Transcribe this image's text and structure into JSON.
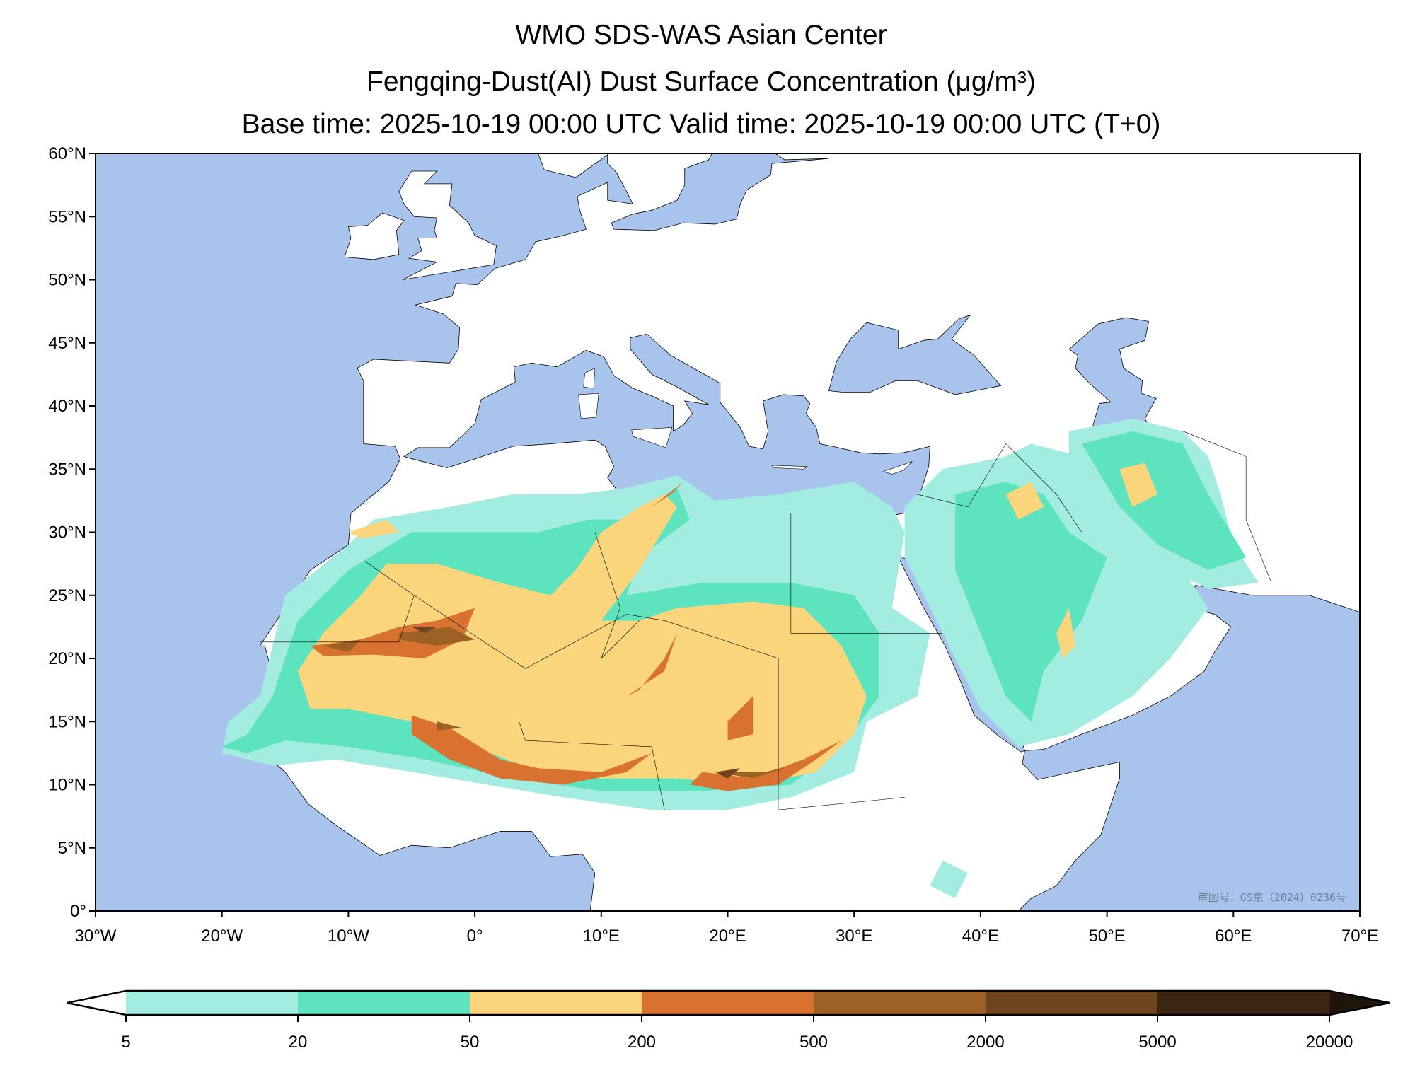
{
  "title": {
    "line1": "WMO SDS-WAS Asian Center",
    "line2": "Fengqing-Dust(AI) Dust Surface Concentration (μg/m³)",
    "line3": "Base time: 2025-10-19 00:00 UTC Valid time: 2025-10-19 00:00 UTC (T+0)"
  },
  "map": {
    "extent_lon": [
      -30,
      70
    ],
    "extent_lat": [
      0,
      60
    ],
    "lon_ticks": [
      {
        "value": -30,
        "label": "30°W"
      },
      {
        "value": -20,
        "label": "20°W"
      },
      {
        "value": -10,
        "label": "10°W"
      },
      {
        "value": 0,
        "label": "0°"
      },
      {
        "value": 10,
        "label": "10°E"
      },
      {
        "value": 20,
        "label": "20°E"
      },
      {
        "value": 30,
        "label": "30°E"
      },
      {
        "value": 40,
        "label": "40°E"
      },
      {
        "value": 50,
        "label": "50°E"
      },
      {
        "value": 60,
        "label": "60°E"
      },
      {
        "value": 70,
        "label": "70°E"
      }
    ],
    "lat_ticks": [
      {
        "value": 0,
        "label": "0°"
      },
      {
        "value": 5,
        "label": "5°N"
      },
      {
        "value": 10,
        "label": "10°N"
      },
      {
        "value": 15,
        "label": "15°N"
      },
      {
        "value": 20,
        "label": "20°N"
      },
      {
        "value": 25,
        "label": "25°N"
      },
      {
        "value": 30,
        "label": "30°N"
      },
      {
        "value": 35,
        "label": "35°N"
      },
      {
        "value": 40,
        "label": "40°N"
      },
      {
        "value": 45,
        "label": "45°N"
      },
      {
        "value": 50,
        "label": "50°N"
      },
      {
        "value": 55,
        "label": "55°N"
      },
      {
        "value": 60,
        "label": "60°N"
      }
    ],
    "ocean_color": "#a9c4ec",
    "land_color": "#ffffff",
    "watermark": "审图号：GS京（2024）0236号"
  },
  "colorbar": {
    "levels": [
      "5",
      "20",
      "50",
      "200",
      "500",
      "2000",
      "5000",
      "20000"
    ],
    "colors": [
      "#a2ece1",
      "#5de4be",
      "#fbd57b",
      "#d97231",
      "#9d6125",
      "#6f4520",
      "#3c2513"
    ],
    "over_color": "#1f150b",
    "under_color": "#ffffff"
  }
}
